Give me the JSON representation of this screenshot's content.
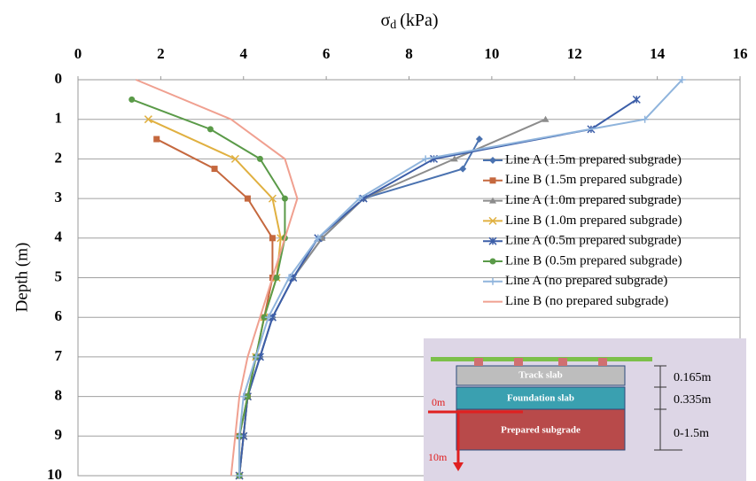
{
  "chart_data": {
    "type": "line",
    "x_label": {
      "symbol": "σ",
      "subscript": "d",
      "unit": "(kPa)"
    },
    "y_label": "Depth (m)",
    "xlim": [
      0,
      16
    ],
    "xticks": [
      0,
      2,
      4,
      6,
      8,
      10,
      12,
      14,
      16
    ],
    "ylim": [
      0,
      10
    ],
    "yticks": [
      0,
      1,
      2,
      3,
      4,
      5,
      6,
      7,
      8,
      9,
      10
    ],
    "y_inverted": true,
    "x_axis_position": "top",
    "grid": true,
    "legend_position": "right",
    "series": [
      {
        "name": "Line A (1.5m prepared subgrade)",
        "color": "#4a72b0",
        "marker": "diamond",
        "x": [
          9.7,
          9.3,
          6.9,
          5.9,
          5.2,
          4.7,
          4.4,
          4.1,
          4.0,
          3.9
        ],
        "values": [
          1.5,
          2.25,
          3,
          4,
          5,
          6,
          7,
          8,
          9,
          10
        ]
      },
      {
        "name": "Line B (1.5m prepared subgrade)",
        "color": "#c5683e",
        "marker": "square",
        "x": [
          1.9,
          3.3,
          4.1,
          4.7,
          4.7,
          4.5,
          4.3,
          4.1,
          3.9,
          3.9
        ],
        "values": [
          1.5,
          2.25,
          3,
          4,
          5,
          6,
          7,
          8,
          9,
          10
        ]
      },
      {
        "name": "Line A (1.0m prepared subgrade)",
        "color": "#8c8c8c",
        "marker": "triangle",
        "x": [
          11.3,
          9.1,
          6.9,
          5.9,
          5.2,
          4.7,
          4.4,
          4.1,
          4.0,
          3.9
        ],
        "values": [
          1,
          2,
          3,
          4,
          5,
          6,
          7,
          8,
          9,
          10
        ]
      },
      {
        "name": "Line B (1.0m prepared subgrade)",
        "color": "#e0b040",
        "marker": "x",
        "x": [
          1.7,
          3.8,
          4.7,
          4.9,
          4.8,
          4.5,
          4.3,
          4.1,
          4.0,
          3.9
        ],
        "values": [
          1,
          2,
          3,
          4,
          5,
          6,
          7,
          8,
          9,
          10
        ]
      },
      {
        "name": "Line A (0.5m prepared subgrade)",
        "color": "#3c5ea8",
        "marker": "star",
        "x": [
          13.5,
          12.4,
          8.6,
          6.9,
          5.8,
          5.2,
          4.7,
          4.4,
          4.1,
          4.0,
          3.9
        ],
        "values": [
          0.5,
          1.25,
          2,
          3,
          4,
          5,
          6,
          7,
          8,
          9,
          10
        ]
      },
      {
        "name": "Line B (0.5m prepared subgrade)",
        "color": "#5a9a48",
        "marker": "circle",
        "x": [
          1.3,
          3.2,
          4.4,
          5.0,
          5.0,
          4.8,
          4.5,
          4.3,
          4.1,
          3.9,
          3.9
        ],
        "values": [
          0.5,
          1.25,
          2,
          3,
          4,
          5,
          6,
          7,
          8,
          9,
          10
        ]
      },
      {
        "name": "Line A (no prepared subgrade)",
        "color": "#8fb4dc",
        "marker": "plus",
        "x": [
          14.6,
          13.7,
          8.4,
          6.8,
          5.8,
          5.1,
          4.6,
          4.3,
          4.0,
          3.9,
          3.9
        ],
        "values": [
          0,
          1,
          2,
          3,
          4,
          5,
          6,
          7,
          8,
          9,
          10
        ]
      },
      {
        "name": "Line B (no prepared subgrade)",
        "color": "#f0a090",
        "marker": "none",
        "x": [
          1.4,
          3.7,
          5.0,
          5.3,
          5.0,
          4.7,
          4.4,
          4.1,
          3.9,
          3.8,
          3.7
        ],
        "values": [
          0,
          1,
          2,
          3,
          4,
          5,
          6,
          7,
          8,
          9,
          10
        ]
      }
    ],
    "inset": {
      "track_slab": "Track slab",
      "foundation_slab": "Foundation slab",
      "prepared_subgrade": "Prepared subgrade",
      "dim_track": "0.165m",
      "dim_foundation": "0.335m",
      "dim_subgrade": "0-1.5m",
      "depth_top": "0m",
      "depth_bottom": "10m"
    }
  }
}
